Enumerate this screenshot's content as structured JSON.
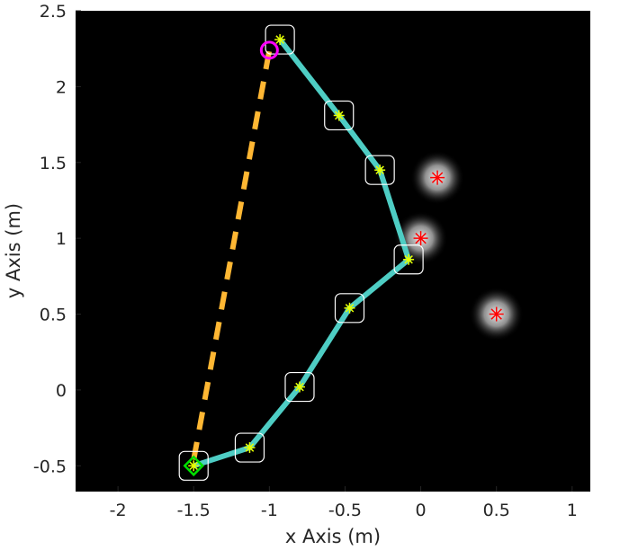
{
  "chart_data": {
    "type": "scatter",
    "title": "",
    "xlabel": "x Axis (m)",
    "ylabel": "y Axis (m)",
    "xlim": [
      -2.28,
      1.12
    ],
    "ylim": [
      -0.67,
      2.5
    ],
    "x_ticks": [
      -2,
      -1.5,
      -1,
      -0.5,
      0,
      0.5,
      1
    ],
    "x_tick_labels": [
      "-2",
      "-1.5",
      "-1",
      "-0.5",
      "0",
      "0.5",
      "1"
    ],
    "y_ticks": [
      -0.5,
      0,
      0.5,
      1,
      1.5,
      2,
      2.5
    ],
    "y_tick_labels": [
      "-0.5",
      "0",
      "0.5",
      "1",
      "1.5",
      "2",
      "2.5"
    ],
    "grid": false,
    "background_color": "#000000",
    "series": [
      {
        "kind": "line",
        "color": "#4ecdc4",
        "style": "solid",
        "x": [
          -1.5,
          -1.13,
          -0.8,
          -0.47,
          -0.08,
          -0.27,
          -0.54,
          -0.93
        ],
        "y": [
          -0.5,
          -0.38,
          0.02,
          0.54,
          0.86,
          1.45,
          1.81,
          2.31
        ]
      },
      {
        "kind": "box_markers",
        "color": "#ffffff",
        "x": [
          -1.5,
          -1.13,
          -0.8,
          -0.47,
          -0.08,
          -0.27,
          -0.54,
          -0.93
        ],
        "y": [
          -0.5,
          -0.38,
          0.02,
          0.54,
          0.86,
          1.45,
          1.81,
          2.31
        ]
      },
      {
        "kind": "star_markers",
        "color": "#e6ff00",
        "x": [
          -1.5,
          -1.13,
          -0.8,
          -0.47,
          -0.08,
          -0.27,
          -0.54,
          -0.93
        ],
        "y": [
          -0.5,
          -0.38,
          0.02,
          0.54,
          0.86,
          1.45,
          1.81,
          2.31
        ]
      },
      {
        "kind": "line",
        "color": "#ffb733",
        "style": "dashed",
        "x": [
          -1.5,
          -1.0
        ],
        "y": [
          -0.46,
          2.24
        ]
      },
      {
        "kind": "obstacles",
        "color": "#ff0000",
        "x": [
          0.11,
          0.0,
          0.5
        ],
        "y": [
          1.4,
          1.0,
          0.5
        ]
      }
    ],
    "start_marker": {
      "shape": "diamond",
      "color": "#00e000",
      "x": -1.5,
      "y": -0.5
    },
    "goal_marker": {
      "shape": "circle",
      "color": "#ff00ff",
      "x": -1.0,
      "y": 2.24
    }
  }
}
